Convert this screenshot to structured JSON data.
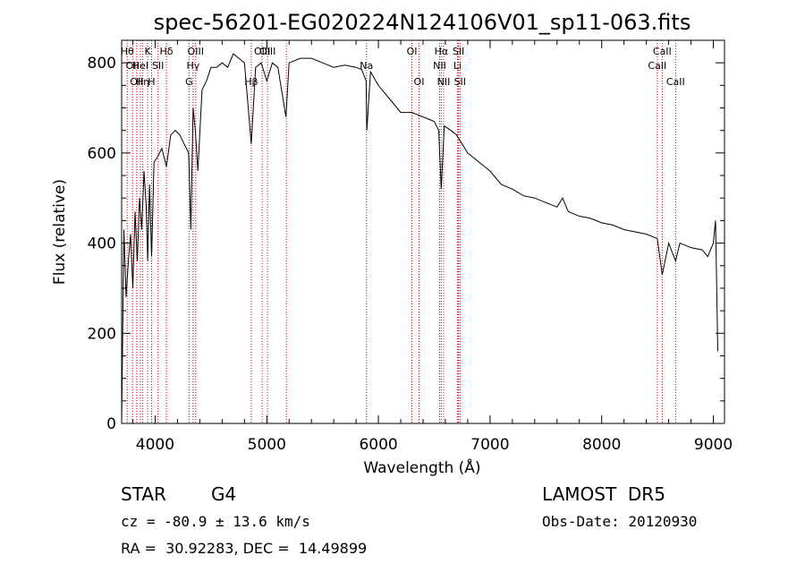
{
  "chart_data": {
    "type": "line",
    "title": "spec-56201-EG020224N124106V01_sp11-063.fits",
    "xlabel": "Wavelength (Å)",
    "ylabel": "Flux (relative)",
    "xlim": [
      3700,
      9100
    ],
    "ylim": [
      0,
      850
    ],
    "x_ticks": [
      4000,
      5000,
      6000,
      7000,
      8000,
      9000
    ],
    "y_ticks": [
      0,
      200,
      400,
      600,
      800
    ],
    "grid": false,
    "line_color": "#000000",
    "marker_line_color": "#cc0000",
    "series": [
      {
        "x": [
          3700,
          3720,
          3740,
          3760,
          3780,
          3800,
          3820,
          3840,
          3860,
          3880,
          3900,
          3920,
          3933,
          3950,
          3968,
          3990,
          4020,
          4060,
          4101,
          4140,
          4180,
          4220,
          4260,
          4300,
          4320,
          4340,
          4360,
          4383,
          4420,
          4460,
          4500,
          4550,
          4600,
          4650,
          4700,
          4750,
          4800,
          4861,
          4900,
          4950,
          5000,
          5050,
          5100,
          5172,
          5200,
          5300,
          5400,
          5500,
          5600,
          5700,
          5800,
          5850,
          5890,
          5896,
          5930,
          6000,
          6100,
          6200,
          6300,
          6400,
          6500,
          6540,
          6563,
          6590,
          6650,
          6700,
          6800,
          6900,
          7000,
          7100,
          7200,
          7300,
          7400,
          7500,
          7600,
          7650,
          7700,
          7800,
          7900,
          8000,
          8100,
          8200,
          8300,
          8400,
          8498,
          8542,
          8600,
          8662,
          8700,
          8800,
          8900,
          8950,
          9000,
          9020,
          9040
        ],
        "values": [
          0,
          430,
          280,
          360,
          420,
          300,
          470,
          360,
          500,
          430,
          560,
          480,
          360,
          530,
          370,
          580,
          590,
          610,
          570,
          640,
          650,
          640,
          620,
          600,
          430,
          700,
          650,
          560,
          740,
          760,
          790,
          790,
          800,
          790,
          820,
          810,
          800,
          620,
          790,
          800,
          760,
          800,
          790,
          680,
          800,
          810,
          810,
          800,
          790,
          795,
          790,
          785,
          760,
          650,
          780,
          750,
          720,
          690,
          690,
          680,
          670,
          650,
          520,
          660,
          650,
          640,
          600,
          580,
          560,
          530,
          520,
          505,
          500,
          490,
          480,
          500,
          470,
          460,
          455,
          445,
          440,
          430,
          425,
          420,
          410,
          330,
          400,
          360,
          400,
          390,
          385,
          370,
          400,
          450,
          160
        ]
      }
    ],
    "lines": [
      {
        "x": 3750,
        "row": 1,
        "label": "Hθ"
      },
      {
        "x": 3798,
        "row": 2,
        "label": "OII"
      },
      {
        "x": 3835,
        "row": 3,
        "label": "OII"
      },
      {
        "x": 3868,
        "row": 2,
        "label": "HeI"
      },
      {
        "x": 3889,
        "row": 3,
        "label": "Hη"
      },
      {
        "x": 3933,
        "row": 1,
        "label": "K"
      },
      {
        "x": 3968,
        "row": 3,
        "label": "H"
      },
      {
        "x": 4026,
        "row": 2,
        "label": "SII"
      },
      {
        "x": 4101,
        "row": 1,
        "label": "Hδ"
      },
      {
        "x": 4304,
        "row": 3,
        "label": "G"
      },
      {
        "x": 4340,
        "row": 2,
        "label": "Hγ"
      },
      {
        "x": 4363,
        "row": 1,
        "label": "OIII"
      },
      {
        "x": 4861,
        "row": 3,
        "label": "Hβ"
      },
      {
        "x": 4959,
        "row": 1,
        "label": "OIII"
      },
      {
        "x": 5007,
        "row": 1,
        "label": "OIII"
      },
      {
        "x": 5175,
        "row": 0,
        "label": ""
      },
      {
        "x": 5893,
        "row": 2,
        "label": "Na"
      },
      {
        "x": 6300,
        "row": 1,
        "label": "OI"
      },
      {
        "x": 6364,
        "row": 3,
        "label": "OI"
      },
      {
        "x": 6548,
        "row": 2,
        "label": "NII"
      },
      {
        "x": 6563,
        "row": 1,
        "label": "Hα"
      },
      {
        "x": 6584,
        "row": 3,
        "label": "NII"
      },
      {
        "x": 6708,
        "row": 2,
        "label": "Li"
      },
      {
        "x": 6717,
        "row": 1,
        "label": "SII"
      },
      {
        "x": 6731,
        "row": 3,
        "label": "SII"
      },
      {
        "x": 8498,
        "row": 2,
        "label": "CaII"
      },
      {
        "x": 8542,
        "row": 1,
        "label": "CaII"
      },
      {
        "x": 8662,
        "row": 3,
        "label": "CaII"
      }
    ]
  },
  "info": {
    "object_class": "STAR",
    "subclass": "G4",
    "survey": "LAMOST  DR5",
    "redshift_line": "cz = -80.9 ± 13.6 km/s",
    "obs_date": "Obs-Date: 20120930",
    "coords": "RA =  30.92283, DEC =  14.49899"
  }
}
